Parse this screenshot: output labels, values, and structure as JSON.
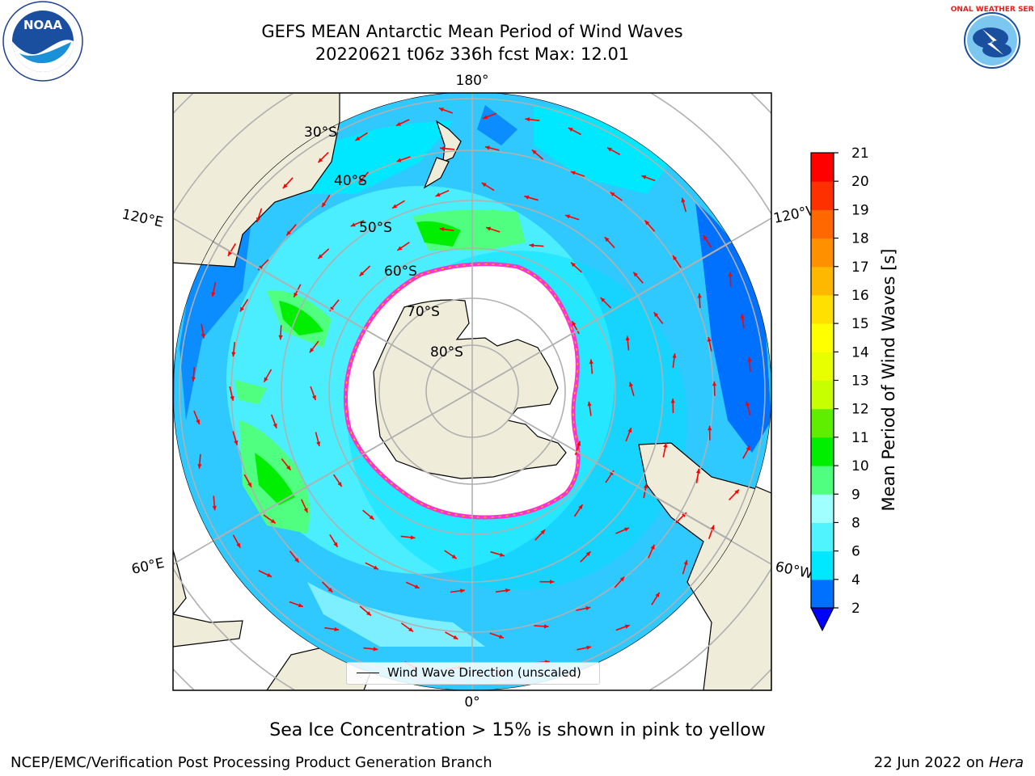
{
  "title": {
    "line1": "GEFS MEAN Antarctic Mean Period of Wind Waves",
    "line2": "20220621 t06z 336h fcst   Max: 12.01"
  },
  "map": {
    "projection": "south-polar-stereographic",
    "longitude_labels": [
      {
        "key": "top",
        "text": "180°"
      },
      {
        "key": "bottom",
        "text": "0°"
      },
      {
        "key": "upper-left",
        "text": "120°E"
      },
      {
        "key": "lower-left",
        "text": "60°E"
      },
      {
        "key": "upper-right",
        "text": "120°W"
      },
      {
        "key": "lower-right",
        "text": "60°W"
      }
    ],
    "latitude_labels": [
      "30°S",
      "40°S",
      "50°S",
      "60°S",
      "70°S",
      "80°S"
    ],
    "legend_label": "Wind Wave Direction (unscaled)",
    "colors": {
      "land": "#efecda",
      "ice": "#ffffff",
      "ice_edge": "#ff33cc",
      "arrow": "#ff0000",
      "grid": "#b0b0b0"
    }
  },
  "colorbar": {
    "label": "Mean Period of Wind Waves [s]",
    "ticks": [
      "2",
      "4",
      "6",
      "8",
      "9",
      "10",
      "11",
      "12",
      "13",
      "14",
      "15",
      "16",
      "17",
      "18",
      "19",
      "20",
      "21"
    ],
    "colors": [
      "#0070ff",
      "#00e8ff",
      "#50f4ff",
      "#a0ffff",
      "#50ff80",
      "#00ee00",
      "#60ee00",
      "#c8ff00",
      "#e8ff00",
      "#ffff00",
      "#ffe000",
      "#ffb800",
      "#ff9000",
      "#ff6800",
      "#ff3000",
      "#ff0000"
    ],
    "extend_color": "#0000ff"
  },
  "caption": "Sea Ice Concentration > 15% is shown in pink to yellow",
  "footer": {
    "left": "NCEP/EMC/Verification Post Processing Product Generation Branch",
    "right_date": "22 Jun 2022 on",
    "right_host": "Hera"
  },
  "logos": {
    "noaa": {
      "text": "NOAA",
      "name": "noaa-logo"
    },
    "nws": {
      "text": "NATIONAL WEATHER SERVICE",
      "name": "nws-logo"
    }
  }
}
